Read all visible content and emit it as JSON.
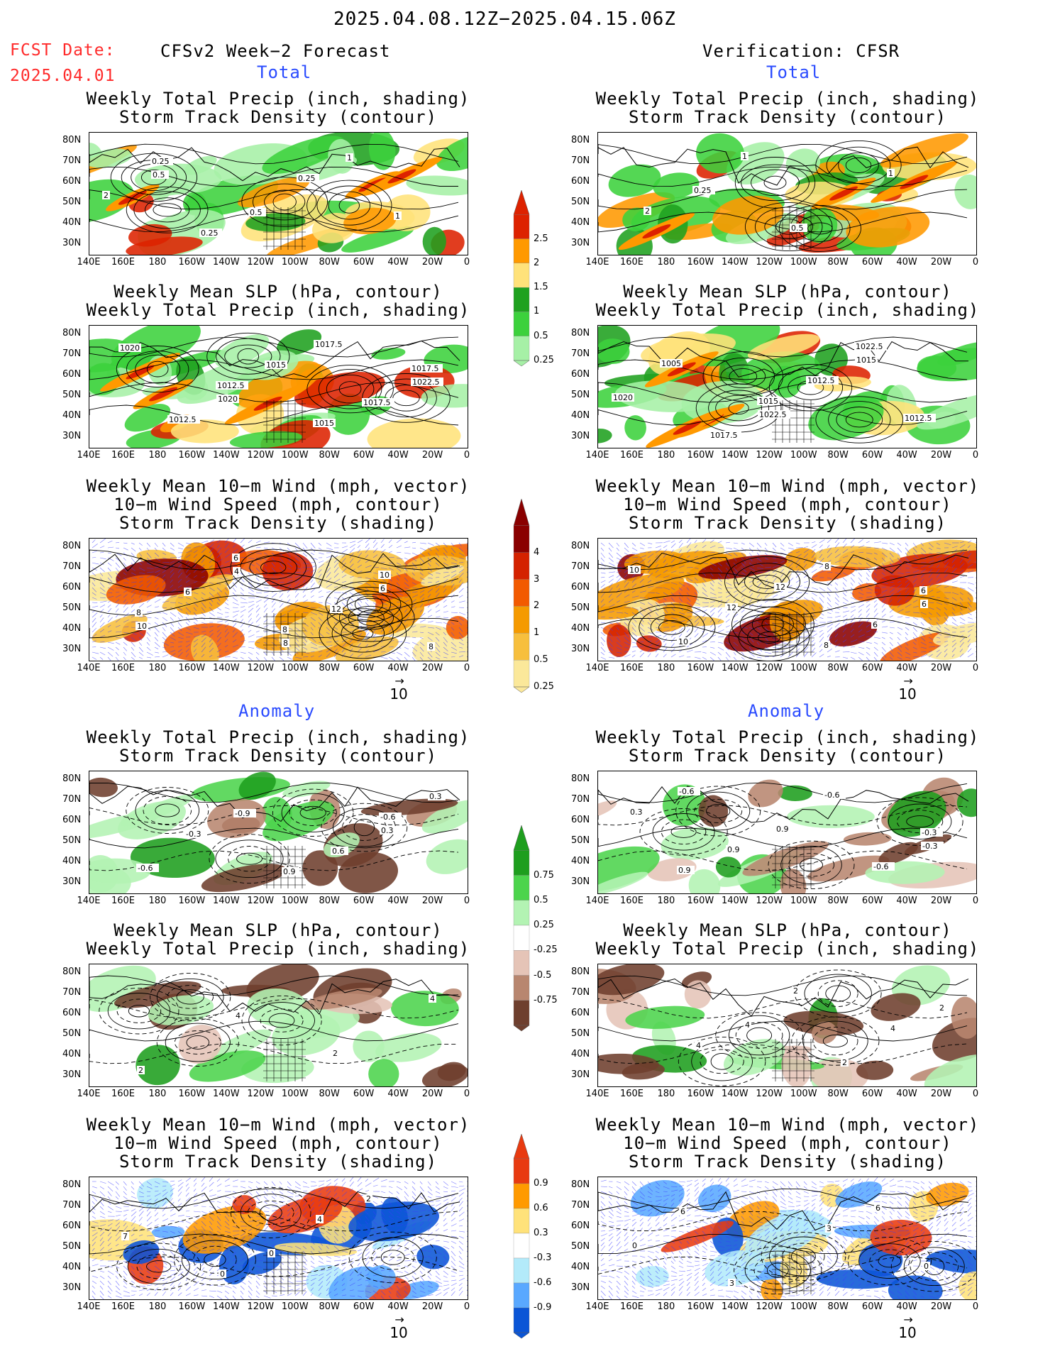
{
  "header": {
    "date_range": "2025.04.08.12Z−2025.04.15.06Z",
    "fcst_label": "FCST Date:",
    "fcst_date": "2025.04.01",
    "left_title": "CFSv2 Week−2 Forecast",
    "right_title": "Verification: CFSR",
    "total_label": "Total",
    "anomaly_label": "Anomaly"
  },
  "axes": {
    "lat_labels": [
      "80N",
      "70N",
      "60N",
      "50N",
      "40N",
      "30N"
    ],
    "lon_labels": [
      "140E",
      "160E",
      "180",
      "160W",
      "140W",
      "120W",
      "100W",
      "80W",
      "60W",
      "40W",
      "20W",
      "0"
    ]
  },
  "panel_titles": {
    "precip_storm": [
      "Weekly Total Precip (inch, shading)",
      "Storm Track Density (contour)"
    ],
    "slp_precip": [
      "Weekly Mean SLP (hPa, contour)",
      "Weekly Total Precip (inch, shading)"
    ],
    "wind_storm": [
      "Weekly Mean 10−m Wind (mph, vector)",
      "10−m Wind Speed (mph, contour)",
      "Storm Track Density (shading)"
    ]
  },
  "vector_ref": "10",
  "colorbars": [
    {
      "id": "precip_total",
      "labels": [
        "2.5",
        "2",
        "1.5",
        "1",
        "0.5",
        "0.25"
      ],
      "colors": [
        "#dd2200",
        "#ff9900",
        "#ffe27a",
        "#1fa11f",
        "#3cd13c",
        "#a6f0a6"
      ]
    },
    {
      "id": "storm_total",
      "labels": [
        "4",
        "3",
        "2",
        "1",
        "0.5",
        "0.25"
      ],
      "colors": [
        "#8a0000",
        "#d42200",
        "#f25a00",
        "#f59a00",
        "#f7bf3d",
        "#fbe89a"
      ]
    },
    {
      "id": "precip_anom",
      "labels": [
        "0.75",
        "0.5",
        "0.25",
        "-0.25",
        "-0.5",
        "-0.75"
      ],
      "colors": [
        "#1e9e1e",
        "#4cd44c",
        "#b3f3b3",
        "#ffffff",
        "#e5c4b7",
        "#b8866f",
        "#6e3f2e"
      ]
    },
    {
      "id": "storm_anom",
      "labels": [
        "0.9",
        "0.6",
        "0.3",
        "-0.3",
        "-0.6",
        "-0.9"
      ],
      "colors": [
        "#e83a10",
        "#ff9a00",
        "#ffe27a",
        "#ffffff",
        "#b3eafa",
        "#59a8ff",
        "#0a55d6"
      ]
    }
  ],
  "map_labels": {
    "fc_total_precip": [
      "0.5",
      "0.5",
      "1",
      "2",
      "0.25",
      "0.25",
      "1",
      "0.25"
    ],
    "fc_total_slp": [
      "1020",
      "1017.5",
      "1022.5",
      "1012.5",
      "1015",
      "1017.5",
      "1020",
      "1012.5",
      "1015",
      "1017.5"
    ],
    "fc_total_wind": [
      "8",
      "6",
      "10",
      "4",
      "12",
      "8",
      "6",
      "8",
      "10",
      "8",
      "6"
    ],
    "ob_total_precip": [
      "0.25",
      "0.5",
      "1",
      "2",
      "1"
    ],
    "ob_total_slp": [
      "1022.5",
      "1015",
      "1020",
      "1017.5",
      "1012.5",
      "1012.5",
      "1005",
      "1015",
      "1022.5"
    ],
    "ob_total_wind": [
      "8",
      "6",
      "10",
      "12",
      "6",
      "10",
      "12",
      "8",
      "6"
    ],
    "fc_anom_precip": [
      "0.3",
      "-0.6",
      "-0.9",
      "0.6",
      "0.3",
      "-0.3",
      "0.9",
      "-0.6"
    ],
    "ob_anom_precip": [
      "-0.3",
      "-0.6",
      "0.9",
      "-0.6",
      "0.3",
      "0.9",
      "-0.6",
      "-0.3",
      "0.9"
    ],
    "fc_anom_slp": [
      "2",
      "4",
      "2",
      "4"
    ],
    "ob_anom_slp": [
      "4",
      "2",
      "2",
      "4",
      "2",
      "4"
    ],
    "fc_anom_wind": [
      "0",
      "2",
      "7",
      "0",
      "4"
    ],
    "ob_anom_wind": [
      "6",
      "0",
      "3",
      "3",
      "0",
      "6"
    ]
  }
}
